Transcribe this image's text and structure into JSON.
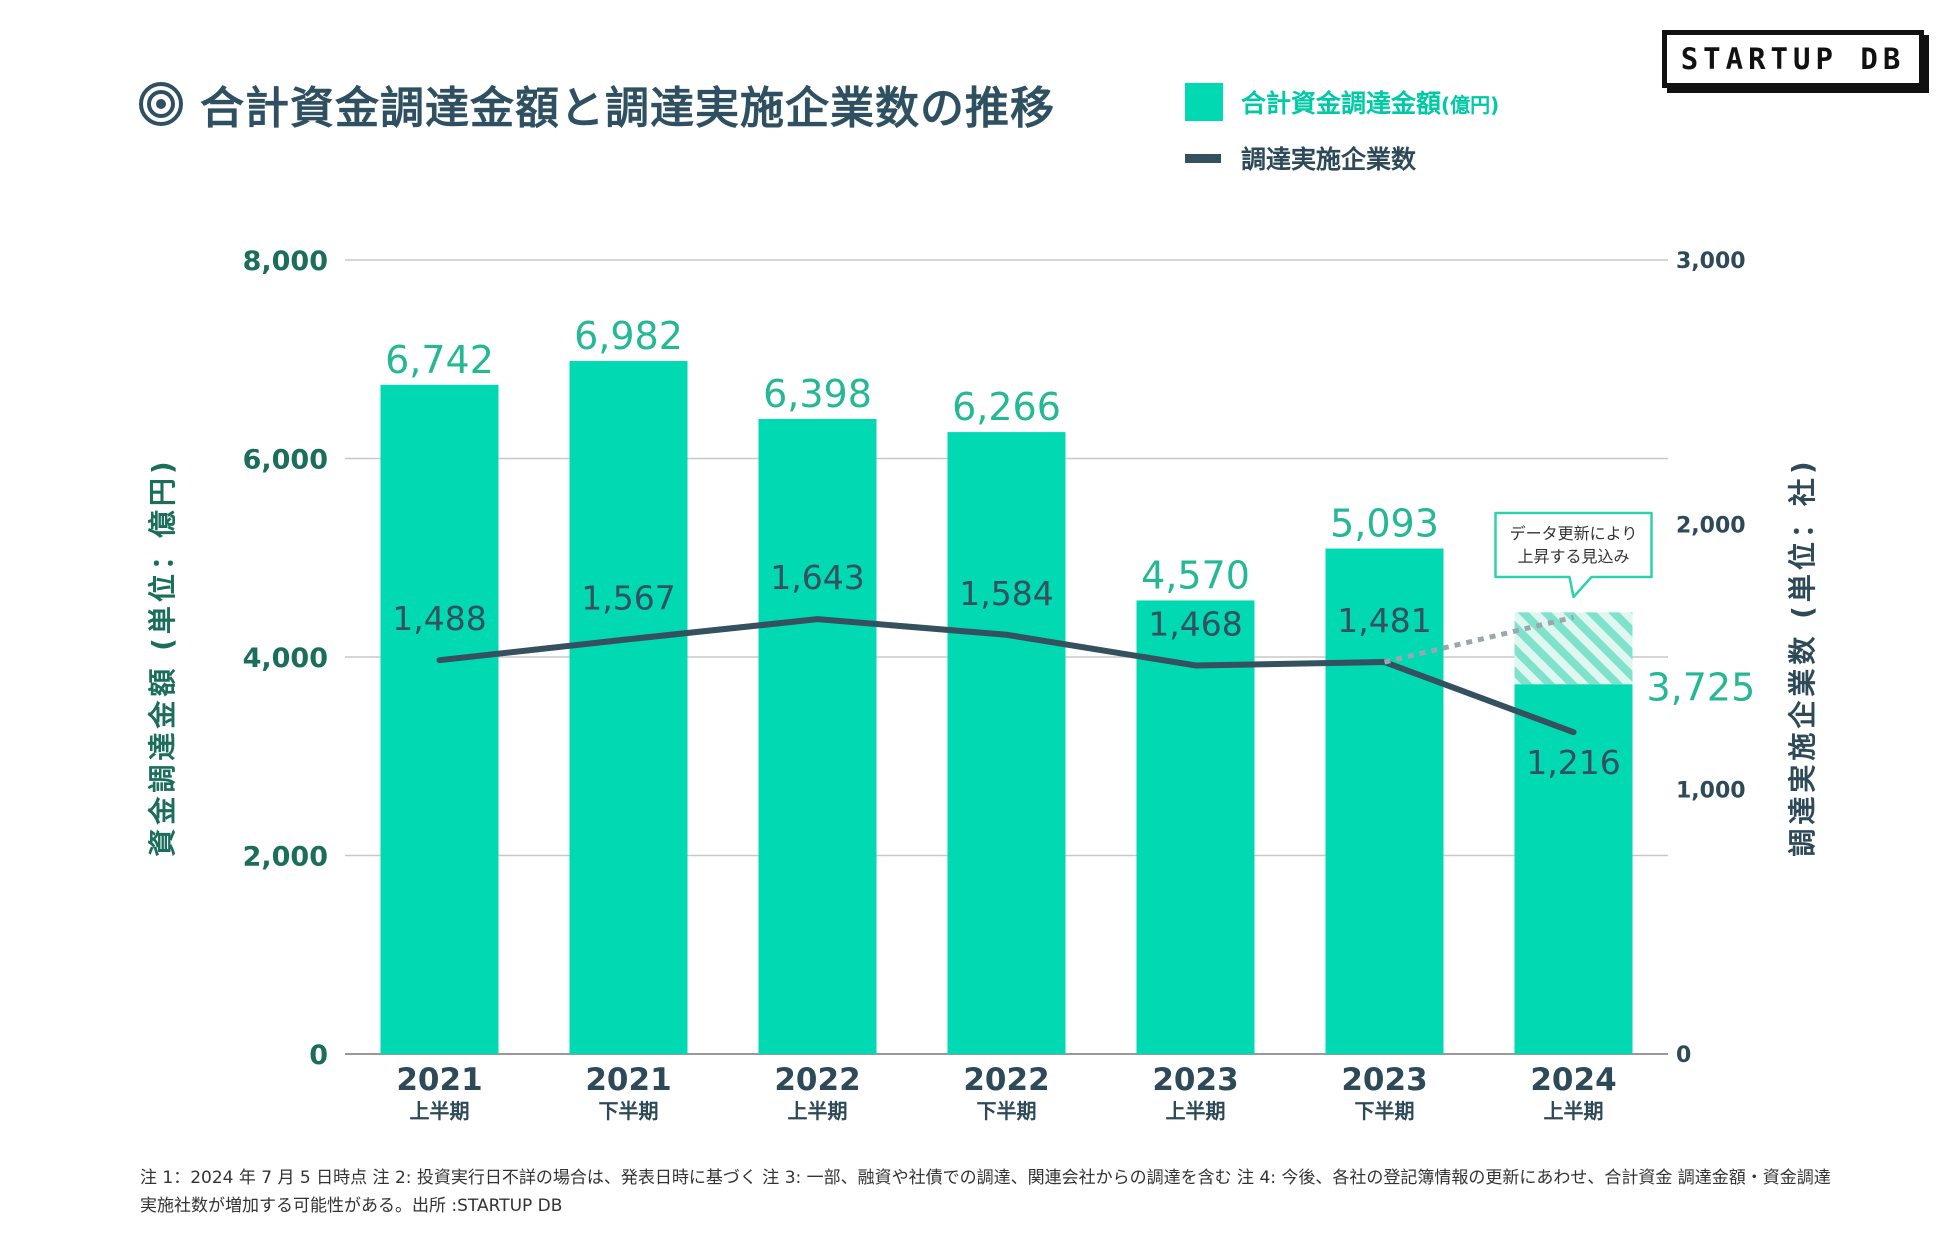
{
  "title": "合計資金調達金額と調達実施企業数の推移",
  "legend": {
    "bars_label": "合計資金調達金額",
    "bars_unit": "(億円)",
    "line_label": "調達実施企業数"
  },
  "logo": "STARTUP DB",
  "colors": {
    "bar": "#00d9b2",
    "bar_label": "#25b894",
    "line": "#35505e",
    "axis_left": "#1c6e5c",
    "axis_right": "#2e4a58"
  },
  "chart_data": {
    "type": "bar",
    "categories": [
      {
        "year": "2021",
        "half": "上半期"
      },
      {
        "year": "2021",
        "half": "下半期"
      },
      {
        "year": "2022",
        "half": "上半期"
      },
      {
        "year": "2022",
        "half": "下半期"
      },
      {
        "year": "2023",
        "half": "上半期"
      },
      {
        "year": "2023",
        "half": "下半期"
      },
      {
        "year": "2024",
        "half": "上半期"
      }
    ],
    "series": [
      {
        "name": "合計資金調達金額",
        "axis": "left",
        "type": "bar",
        "values": [
          6742,
          6982,
          6398,
          6266,
          4570,
          5093,
          3725
        ],
        "value_labels": [
          "6,742",
          "6,982",
          "6,398",
          "6,266",
          "4,570",
          "5,093",
          "3,725"
        ]
      },
      {
        "name": "調達実施企業数",
        "axis": "right",
        "type": "line",
        "values": [
          1488,
          1567,
          1643,
          1584,
          1468,
          1481,
          1216
        ],
        "value_labels": [
          "1,488",
          "1,567",
          "1,643",
          "1,584",
          "1,468",
          "1,481",
          "1,216"
        ]
      }
    ],
    "projection": {
      "category_index": 6,
      "bar_estimated": 4450,
      "line_estimated": 1650,
      "callout": [
        "データ更新により",
        "上昇する見込み"
      ]
    },
    "y_left": {
      "label": "資金調達金額 (単位：億円)",
      "range": [
        0,
        8000
      ],
      "ticks": [
        0,
        2000,
        4000,
        6000,
        8000
      ],
      "tick_labels": [
        "0",
        "2,000",
        "4,000",
        "6,000",
        "8,000"
      ]
    },
    "y_right": {
      "label": "調達実施企業数 (単位：社)",
      "range": [
        0,
        3000
      ],
      "ticks": [
        0,
        1000,
        2000,
        3000
      ],
      "tick_labels": [
        "0",
        "1,000",
        "2,000",
        "3,000"
      ]
    },
    "grid": true
  },
  "footnote": "注 1：2024 年 7 月 5 日時点 注 2: 投資実行日不詳の場合は、発表日時に基づく 注 3: 一部、融資や社債での調達、関連会社からの調達を含む 注 4: 今後、各社の登記簿情報の更新にあわせ、合計資金 調達金額・資金調達実施社数が増加する可能性がある。出所 :STARTUP DB"
}
